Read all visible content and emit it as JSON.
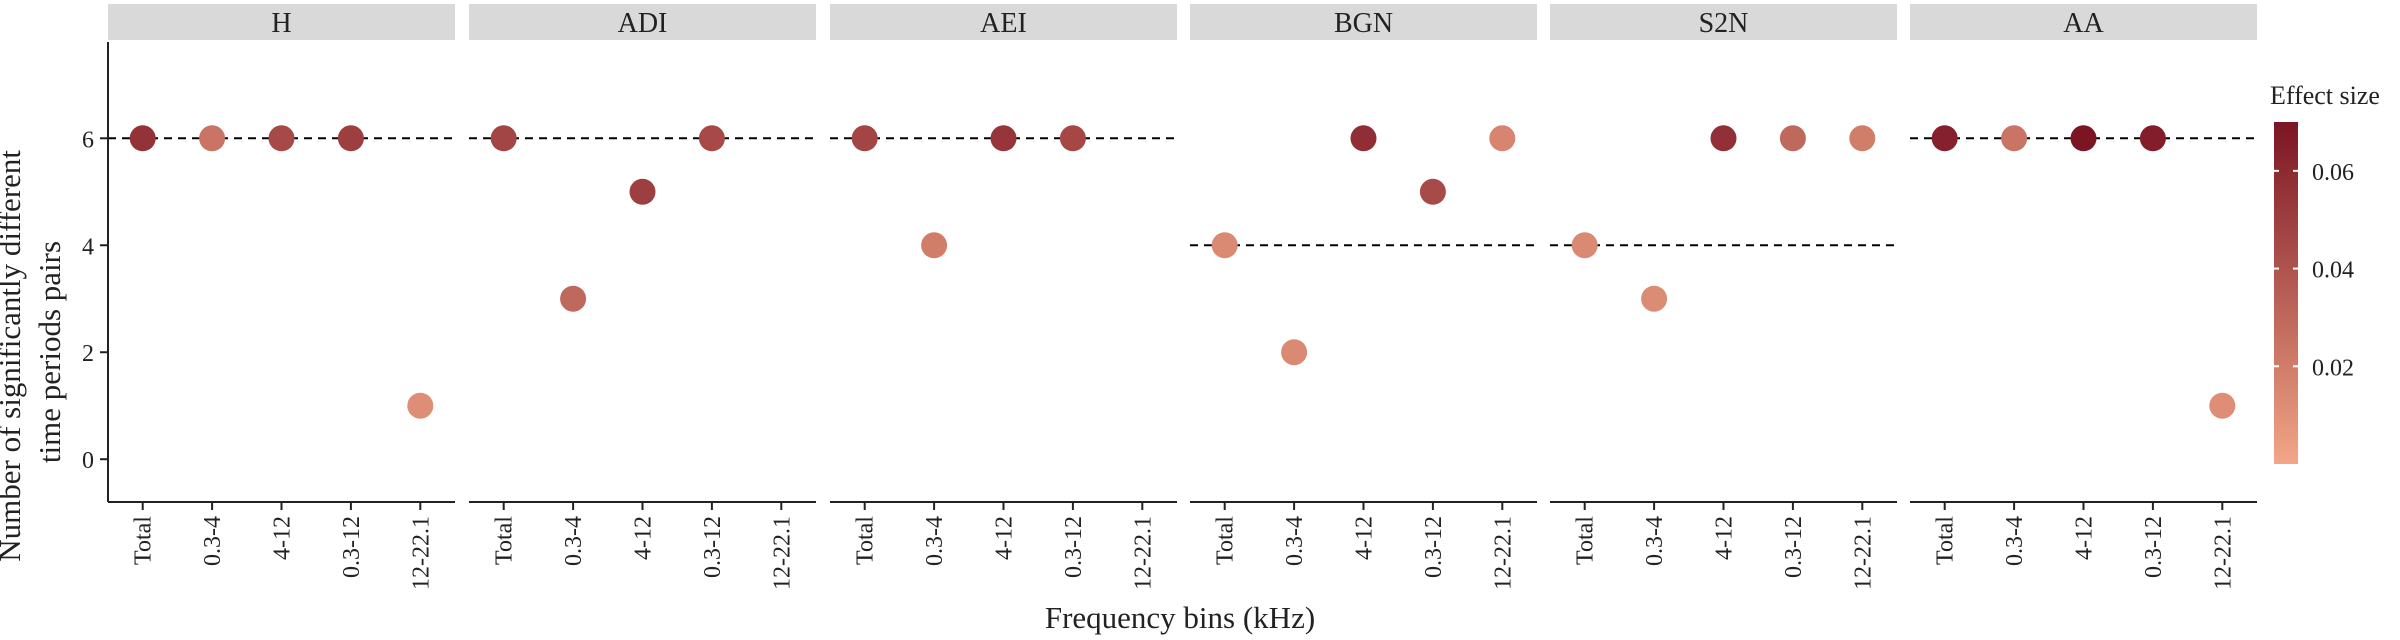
{
  "chart_data": {
    "type": "scatter",
    "xlabel": "Frequency bins (kHz)",
    "ylabel": [
      "Number of significantly different",
      "time periods pairs"
    ],
    "categories": [
      "Total",
      "0.3-4",
      "4-12",
      "0.3-12",
      "12-22.1"
    ],
    "yticks": [
      0,
      2,
      4,
      6
    ],
    "ylim": [
      -0.8,
      7.8
    ],
    "legend": {
      "title": "Effect size",
      "position": "right",
      "ticks": [
        0.02,
        0.04,
        0.06
      ],
      "tick_labels": [
        "0.02",
        "0.04",
        "0.06"
      ],
      "range": [
        0,
        0.07
      ],
      "color_low": "#f2a687",
      "color_high": "#7b1523"
    },
    "facets": [
      {
        "name": "H",
        "reference_line": 6,
        "points": [
          {
            "x": "Total",
            "y": 6,
            "effect": 0.056
          },
          {
            "x": "0.3-4",
            "y": 6,
            "effect": 0.024
          },
          {
            "x": "4-12",
            "y": 6,
            "effect": 0.045
          },
          {
            "x": "0.3-12",
            "y": 6,
            "effect": 0.05
          },
          {
            "x": "12-22.1",
            "y": 1,
            "effect": 0.012
          }
        ]
      },
      {
        "name": "ADI",
        "reference_line": 6,
        "points": [
          {
            "x": "Total",
            "y": 6,
            "effect": 0.047
          },
          {
            "x": "0.3-4",
            "y": 3,
            "effect": 0.03
          },
          {
            "x": "4-12",
            "y": 5,
            "effect": 0.05
          },
          {
            "x": "0.3-12",
            "y": 6,
            "effect": 0.045
          }
        ]
      },
      {
        "name": "AEI",
        "reference_line": 6,
        "points": [
          {
            "x": "Total",
            "y": 6,
            "effect": 0.047
          },
          {
            "x": "0.3-4",
            "y": 4,
            "effect": 0.02
          },
          {
            "x": "4-12",
            "y": 6,
            "effect": 0.054
          },
          {
            "x": "0.3-12",
            "y": 6,
            "effect": 0.046
          }
        ]
      },
      {
        "name": "BGN",
        "reference_line": 4,
        "points": [
          {
            "x": "Total",
            "y": 4,
            "effect": 0.014
          },
          {
            "x": "0.3-4",
            "y": 2,
            "effect": 0.014
          },
          {
            "x": "4-12",
            "y": 6,
            "effect": 0.058
          },
          {
            "x": "0.3-12",
            "y": 5,
            "effect": 0.044
          },
          {
            "x": "12-22.1",
            "y": 6,
            "effect": 0.016
          }
        ]
      },
      {
        "name": "S2N",
        "reference_line": 4,
        "points": [
          {
            "x": "Total",
            "y": 4,
            "effect": 0.014
          },
          {
            "x": "0.3-4",
            "y": 3,
            "effect": 0.013
          },
          {
            "x": "4-12",
            "y": 6,
            "effect": 0.057
          },
          {
            "x": "0.3-12",
            "y": 6,
            "effect": 0.03
          },
          {
            "x": "12-22.1",
            "y": 6,
            "effect": 0.02
          }
        ]
      },
      {
        "name": "AA",
        "reference_line": 6,
        "points": [
          {
            "x": "Total",
            "y": 6,
            "effect": 0.064
          },
          {
            "x": "0.3-4",
            "y": 6,
            "effect": 0.024
          },
          {
            "x": "4-12",
            "y": 6,
            "effect": 0.07
          },
          {
            "x": "0.3-12",
            "y": 6,
            "effect": 0.066
          },
          {
            "x": "12-22.1",
            "y": 1,
            "effect": 0.012
          }
        ]
      }
    ]
  }
}
